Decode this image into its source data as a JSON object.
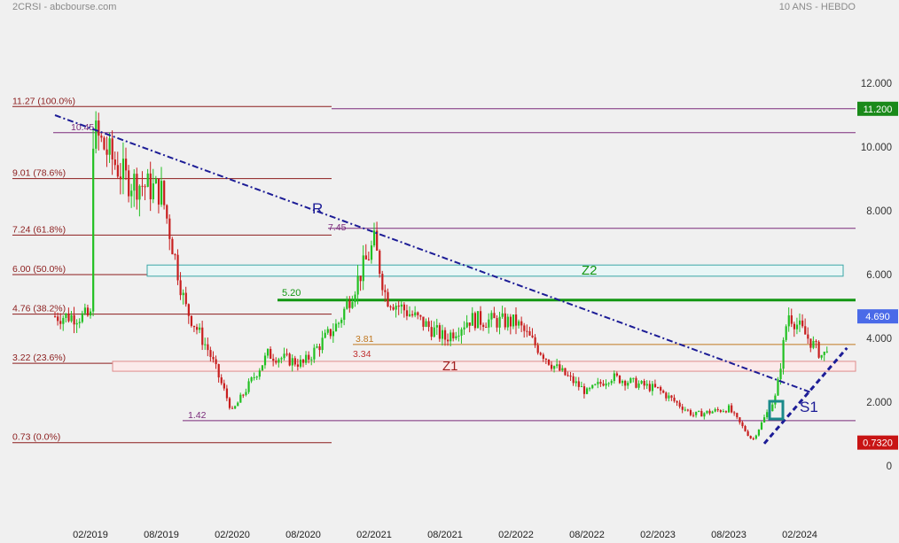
{
  "header": {
    "left": "2CRSI - abcbourse.com",
    "right": "10 ANS - HEBDO"
  },
  "colors": {
    "background": "#f0f0f0",
    "up": "#22c022",
    "down": "#c81e1e",
    "trend": "#1c1c96",
    "fib": "#8b1c1c",
    "level": "#7a2a7a",
    "resistance": "#129612"
  },
  "chart_data": {
    "type": "candlestick",
    "title": "",
    "xlabel": "",
    "ylabel": "",
    "ylim": [
      0,
      12
    ],
    "y_ticks": [
      "12.000",
      "10.000",
      "8.000",
      "6.000",
      "4.000",
      "2.000",
      "0"
    ],
    "x_ticks": [
      "02/2019",
      "08/2019",
      "02/2020",
      "08/2020",
      "02/2021",
      "08/2021",
      "02/2022",
      "08/2022",
      "02/2023",
      "08/2023",
      "02/2024"
    ],
    "price_path": [
      [
        "02/2019",
        10.6
      ],
      [
        "05/2019",
        9.0
      ],
      [
        "08/2019",
        8.6
      ],
      [
        "10/2019",
        5.0
      ],
      [
        "12/2019",
        3.6
      ],
      [
        "02/2020",
        1.7
      ],
      [
        "05/2020",
        3.5
      ],
      [
        "08/2020",
        3.2
      ],
      [
        "11/2020",
        4.5
      ],
      [
        "02/2021",
        7.0
      ],
      [
        "03/2021",
        5.3
      ],
      [
        "08/2021",
        4.0
      ],
      [
        "10/2021",
        4.6
      ],
      [
        "02/2022",
        4.5
      ],
      [
        "05/2022",
        3.2
      ],
      [
        "08/2022",
        2.3
      ],
      [
        "10/2022",
        2.8
      ],
      [
        "02/2023",
        2.4
      ],
      [
        "05/2023",
        1.6
      ],
      [
        "08/2023",
        1.8
      ],
      [
        "10/2023",
        0.8
      ],
      [
        "12/2023",
        2.2
      ],
      [
        "01/2024",
        4.8
      ],
      [
        "04/2024",
        3.4
      ],
      [
        "05/2024",
        4.69
      ]
    ],
    "fibonacci": [
      {
        "label": "11.27 (100.0%)",
        "value": 11.27
      },
      {
        "label": "9.01 (78.6%)",
        "value": 9.01
      },
      {
        "label": "7.24 (61.8%)",
        "value": 7.24
      },
      {
        "label": "6.00 (50.0%)",
        "value": 6.0
      },
      {
        "label": "4.76 (38.2%)",
        "value": 4.76
      },
      {
        "label": "3.22 (23.6%)",
        "value": 3.22
      },
      {
        "label": "0.73 (0.0%)",
        "value": 0.73
      }
    ],
    "levels": [
      {
        "label": "10.45",
        "value": 10.45
      },
      {
        "label": "7.45",
        "value": 7.45
      },
      {
        "label": "1.42",
        "value": 1.42
      },
      {
        "label": "11.200",
        "value": 11.2
      }
    ],
    "support_levels": [
      {
        "label": "5.20",
        "value": 5.2,
        "color": "#129612"
      },
      {
        "label": "3.81",
        "value": 3.81,
        "color": "#c07820"
      },
      {
        "label": "3.34",
        "value": 3.34,
        "color": "#c03030"
      },
      {
        "label": "2.99",
        "value": 2.99,
        "color": "#c03030"
      }
    ],
    "zones": [
      {
        "label": "Z2",
        "from": 5.95,
        "to": 6.3
      },
      {
        "label": "Z1",
        "from": 2.97,
        "to": 3.28
      }
    ],
    "trendlines": [
      {
        "label": "R",
        "from": [
          "11/2018",
          11.0
        ],
        "to": [
          "03/2024",
          2.3
        ]
      },
      {
        "label": "S1",
        "from": [
          "11/2023",
          0.7
        ],
        "to": [
          "06/2024",
          3.7
        ]
      }
    ],
    "price_badges": [
      {
        "label": "11.200",
        "value": 11.2,
        "color": "#1a8a1a"
      },
      {
        "label": "4.690",
        "value": 4.69,
        "color": "#4a6ae8"
      },
      {
        "label": "0.7320",
        "value": 0.732,
        "color": "#c81414"
      }
    ]
  }
}
